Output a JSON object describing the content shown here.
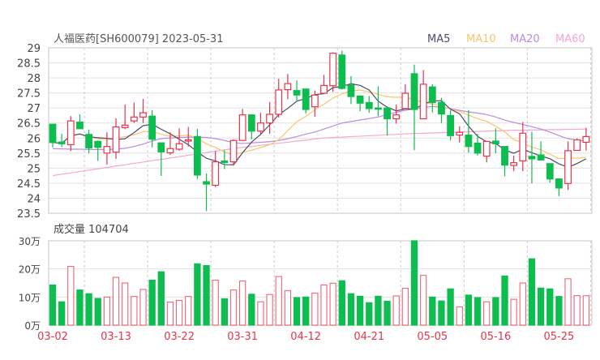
{
  "title": "人福医药[SH600079] 2023-05-31",
  "legend": [
    {
      "label": "MA5",
      "color": "#4b4a6b"
    },
    {
      "label": "MA10",
      "color": "#f9c56a"
    },
    {
      "label": "MA20",
      "color": "#b98ce0"
    },
    {
      "label": "MA60",
      "color": "#f7a6cf"
    }
  ],
  "volume_title": "成交量 104704",
  "colors": {
    "up": "#e8334a",
    "down": "#0dbd4f",
    "grid": "#e2e2e2",
    "axis_text": "#444444",
    "date_text": "#e8334a"
  },
  "chart_data": [
    {
      "type": "candlestick",
      "ylim": [
        23.5,
        29
      ],
      "yticks": [
        "29",
        "28.5",
        "28",
        "27.5",
        "27",
        "26.5",
        "26",
        "25.5",
        "25",
        "24.5",
        "24",
        "23.5"
      ],
      "grid": true,
      "legend_placement": "top-right",
      "x_labels": [
        "03-02",
        "03-13",
        "03-22",
        "03-31",
        "04-12",
        "04-21",
        "05-05",
        "05-16",
        "05-25"
      ],
      "ohlc": [
        [
          26.46,
          26.46,
          25.69,
          25.85
        ],
        [
          25.87,
          26.14,
          25.7,
          25.81
        ],
        [
          25.78,
          26.73,
          25.57,
          26.57
        ],
        [
          26.53,
          26.79,
          26.31,
          26.31
        ],
        [
          26.12,
          26.28,
          25.49,
          25.67
        ],
        [
          25.89,
          25.92,
          25.24,
          25.69
        ],
        [
          25.5,
          26.19,
          25.12,
          25.72
        ],
        [
          25.53,
          26.66,
          25.31,
          26.37
        ],
        [
          26.35,
          27.11,
          26.3,
          26.43
        ],
        [
          26.57,
          27.18,
          26.5,
          26.7
        ],
        [
          26.7,
          27.3,
          26.5,
          26.84
        ],
        [
          26.73,
          26.93,
          25.69,
          25.96
        ],
        [
          25.84,
          25.84,
          24.74,
          25.54
        ],
        [
          25.51,
          26.19,
          25.44,
          25.65
        ],
        [
          25.63,
          26.32,
          25.58,
          25.81
        ],
        [
          25.92,
          26.37,
          25.72,
          25.94
        ],
        [
          26.05,
          26.3,
          24.64,
          24.77
        ],
        [
          24.55,
          24.82,
          23.57,
          24.47
        ],
        [
          24.43,
          25.57,
          24.37,
          25.21
        ],
        [
          25.24,
          25.59,
          24.97,
          25.19
        ],
        [
          25.21,
          25.96,
          25.08,
          25.92
        ],
        [
          25.92,
          26.97,
          25.92,
          26.77
        ],
        [
          26.77,
          26.79,
          25.96,
          26.23
        ],
        [
          26.23,
          26.84,
          26.1,
          26.5
        ],
        [
          26.5,
          27.2,
          26.14,
          26.79
        ],
        [
          26.79,
          27.97,
          26.68,
          27.6
        ],
        [
          27.61,
          28.13,
          27.29,
          27.81
        ],
        [
          27.58,
          27.92,
          27.22,
          27.43
        ],
        [
          27.63,
          27.63,
          26.82,
          26.95
        ],
        [
          27.04,
          27.58,
          26.71,
          27.43
        ],
        [
          27.49,
          28.1,
          27.49,
          27.75
        ],
        [
          27.74,
          28.85,
          27.54,
          28.82
        ],
        [
          28.76,
          28.91,
          27.61,
          27.65
        ],
        [
          27.76,
          28.06,
          27.13,
          27.38
        ],
        [
          27.4,
          27.4,
          26.89,
          27.16
        ],
        [
          27.18,
          27.4,
          26.84,
          26.98
        ],
        [
          27.0,
          27.72,
          26.73,
          26.97
        ],
        [
          27.0,
          27.0,
          26.08,
          26.64
        ],
        [
          26.64,
          27.11,
          26.48,
          26.77
        ],
        [
          26.98,
          27.79,
          26.98,
          27.49
        ],
        [
          28.14,
          28.44,
          25.6,
          26.95
        ],
        [
          26.64,
          28.26,
          26.64,
          27.79
        ],
        [
          27.7,
          27.79,
          26.85,
          27.18
        ],
        [
          27.18,
          27.34,
          26.5,
          26.8
        ],
        [
          26.75,
          26.93,
          25.92,
          26.08
        ],
        [
          26.1,
          26.39,
          25.85,
          26.19
        ],
        [
          26.1,
          26.93,
          25.51,
          25.72
        ],
        [
          25.83,
          26.14,
          25.42,
          25.5
        ],
        [
          25.4,
          25.89,
          25.19,
          25.89
        ],
        [
          25.9,
          26.32,
          25.49,
          25.81
        ],
        [
          25.72,
          25.72,
          24.73,
          25.1
        ],
        [
          25.09,
          25.42,
          24.9,
          25.18
        ],
        [
          25.24,
          26.53,
          24.9,
          26.16
        ],
        [
          25.39,
          26.21,
          24.49,
          25.31
        ],
        [
          25.44,
          25.89,
          25.27,
          25.27
        ],
        [
          25.15,
          25.15,
          24.52,
          24.64
        ],
        [
          24.64,
          24.67,
          24.07,
          24.34
        ],
        [
          24.49,
          25.89,
          24.27,
          25.58
        ],
        [
          25.59,
          25.99,
          25.59,
          25.94
        ],
        [
          25.86,
          26.34,
          25.59,
          26.05
        ]
      ],
      "ma20": [
        25.65,
        25.64,
        25.63,
        25.63,
        25.62,
        25.62,
        25.62,
        25.63,
        25.66,
        25.72,
        25.8,
        25.9,
        25.98,
        26.0,
        26.02,
        26.03,
        26.03,
        26.02,
        25.98,
        25.92,
        25.85,
        25.82,
        25.84,
        25.86,
        25.88,
        25.92,
        25.98,
        26.05,
        26.13,
        26.2,
        26.3,
        26.4,
        26.5,
        26.55,
        26.6,
        26.65,
        26.7,
        26.78,
        26.86,
        26.92,
        26.97,
        27.02,
        27.05,
        27.03,
        26.98,
        26.92,
        26.87,
        26.83,
        26.78,
        26.7,
        26.6,
        26.52,
        26.45,
        26.38,
        26.3,
        26.2,
        26.08,
        25.98,
        25.93,
        25.9
      ],
      "ma60": [
        24.75,
        24.8,
        24.84,
        24.89,
        24.93,
        24.98,
        25.02,
        25.07,
        25.11,
        25.16,
        25.2,
        25.25,
        25.29,
        25.34,
        25.38,
        25.43,
        25.47,
        25.52,
        25.56,
        25.61,
        25.65,
        25.69,
        25.72,
        25.76,
        25.79,
        25.83,
        25.86,
        25.9,
        25.93,
        25.97,
        26.0,
        26.02,
        26.03,
        26.05,
        26.06,
        26.08,
        26.09,
        26.11,
        26.12,
        26.14,
        26.15,
        26.16,
        26.17,
        26.18,
        26.19,
        26.2,
        26.21,
        26.22,
        26.23,
        26.24,
        26.25,
        26.26,
        26.26,
        26.27,
        26.27,
        26.28,
        26.28,
        26.29,
        26.29,
        26.3
      ]
    },
    {
      "type": "bar",
      "ylim": [
        0,
        30
      ],
      "yticks": [
        "30万",
        "20万",
        "10万",
        "0万"
      ],
      "unit": "万",
      "values": [
        14.3,
        8.3,
        20.9,
        12.5,
        11.2,
        9.5,
        10.0,
        17.0,
        15.0,
        10.2,
        12.7,
        16.0,
        19.0,
        8.2,
        8.8,
        10.2,
        21.8,
        21.2,
        16.0,
        9.4,
        12.5,
        15.7,
        11.0,
        8.3,
        10.9,
        17.3,
        12.3,
        9.8,
        10.0,
        11.4,
        14.3,
        14.9,
        15.8,
        11.2,
        10.3,
        8.0,
        10.3,
        8.5,
        10.4,
        13.1,
        30.0,
        17.7,
        10.0,
        8.6,
        12.9,
        6.5,
        10.7,
        9.8,
        8.3,
        9.8,
        17.5,
        9.2,
        15.0,
        23.6,
        13.2,
        12.9,
        10.2,
        16.5,
        10.5,
        10.47
      ]
    }
  ]
}
